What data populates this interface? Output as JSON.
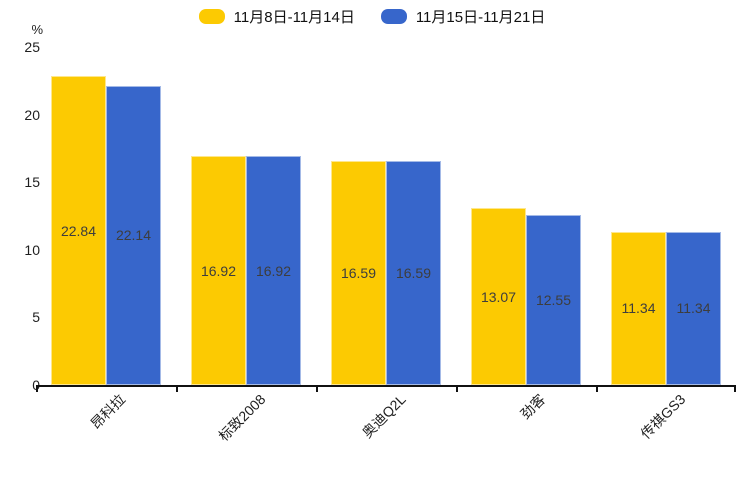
{
  "chart_data": {
    "type": "bar",
    "unit_label": "%",
    "categories": [
      "昂科拉",
      "标致2008",
      "奥迪Q2L",
      "劲客",
      "传祺GS3"
    ],
    "series": [
      {
        "name": "11月8日-11月14日",
        "color": "#FCCA02",
        "values": [
          22.84,
          16.92,
          16.59,
          13.07,
          11.34
        ]
      },
      {
        "name": "11月15日-11月21日",
        "color": "#3766CB",
        "values": [
          22.14,
          16.92,
          16.59,
          12.55,
          11.34
        ]
      }
    ],
    "value_label_position": "inside-center",
    "y_ticks": [
      0,
      5,
      10,
      15,
      20,
      25
    ],
    "ylim": [
      0,
      25
    ],
    "grid": false,
    "legend_position": "top",
    "axis_color": "#111111",
    "label_color": "#3d3d3d"
  }
}
